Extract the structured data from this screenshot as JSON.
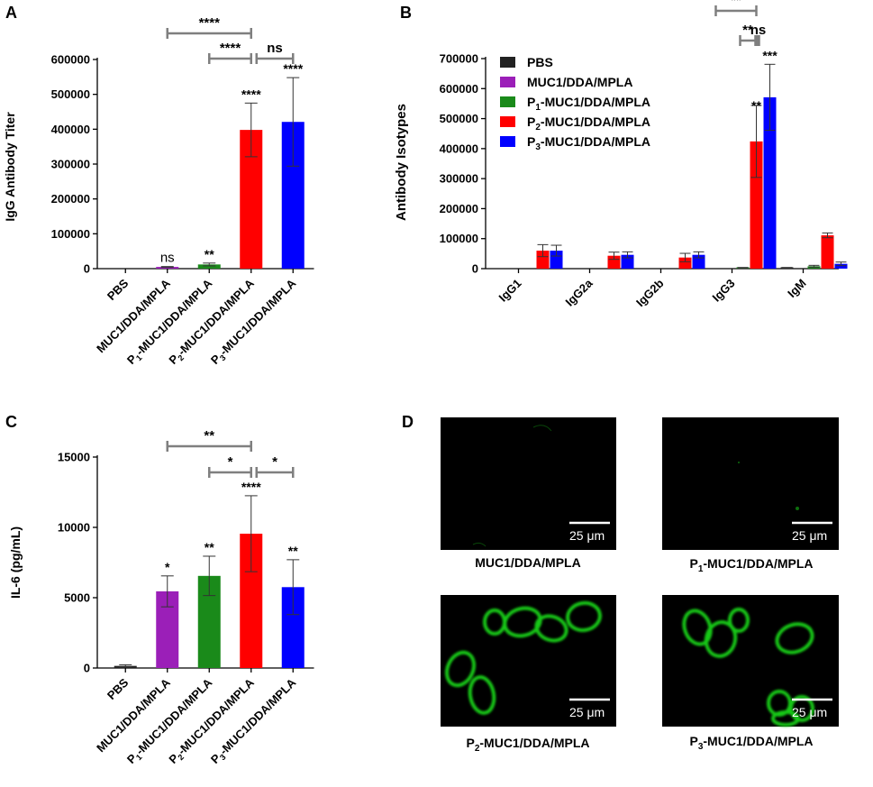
{
  "panels": {
    "A": {
      "letter": "A"
    },
    "B": {
      "letter": "B"
    },
    "C": {
      "letter": "C"
    },
    "D": {
      "letter": "D",
      "images": [
        {
          "caption": "MUC1/DDA/MPLA",
          "caption_prefix": "",
          "caption_sub": "",
          "scale_label": "25 μm"
        },
        {
          "caption": "-MUC1/DDA/MPLA",
          "caption_prefix": "P",
          "caption_sub": "1",
          "scale_label": "25 μm"
        },
        {
          "caption": "-MUC1/DDA/MPLA",
          "caption_prefix": "P",
          "caption_sub": "2",
          "scale_label": "25 μm"
        },
        {
          "caption": "-MUC1/DDA/MPLA",
          "caption_prefix": "P",
          "caption_sub": "3",
          "scale_label": "25 μm"
        }
      ],
      "fluorescence_color": "#19c819"
    }
  },
  "chart_data": [
    {
      "panel": "A",
      "type": "bar",
      "ylabel": "IgG Antibody Titer",
      "ylim": [
        0,
        600000
      ],
      "yticks": [
        "0",
        "100000",
        "200000",
        "300000",
        "400000",
        "500000",
        "600000"
      ],
      "ytick_values": [
        0,
        100000,
        200000,
        300000,
        400000,
        500000,
        600000
      ],
      "categories": [
        "PBS",
        "MUC1/DDA/MPLA",
        "P1-MUC1/DDA/MPLA",
        "P2-MUC1/DDA/MPLA",
        "P3-MUC1/DDA/MPLA"
      ],
      "values": [
        0,
        5000,
        12000,
        398000,
        421000
      ],
      "errors": [
        0,
        1000,
        4000,
        77000,
        127000
      ],
      "colors": [
        "#222222",
        "#9b1fb8",
        "#1a8a1a",
        "#ff0000",
        "#0000ff"
      ],
      "bar_annotations": [
        "",
        "ns",
        "**",
        "****",
        "****"
      ],
      "comparisons": [
        {
          "from": 1,
          "to": 3,
          "label": "****"
        },
        {
          "from": 2,
          "to": 3,
          "label": "****"
        },
        {
          "from": 3,
          "to": 4,
          "label": "ns"
        }
      ]
    },
    {
      "panel": "B",
      "type": "bar",
      "ylabel": "Antibody Isotypes",
      "ylim": [
        0,
        700000
      ],
      "yticks": [
        "0",
        "100000",
        "200000",
        "300000",
        "400000",
        "500000",
        "600000",
        "700000"
      ],
      "ytick_values": [
        0,
        100000,
        200000,
        300000,
        400000,
        500000,
        600000,
        700000
      ],
      "categories": [
        "IgG1",
        "IgG2a",
        "IgG2b",
        "IgG3",
        "IgM"
      ],
      "series": [
        {
          "name": "PBS",
          "legend_prefix": "PBS",
          "legend_sub": "",
          "legend_rest": "",
          "color": "#222222",
          "values": [
            0,
            0,
            0,
            0,
            3000
          ],
          "errors": [
            0,
            0,
            0,
            0,
            1000
          ]
        },
        {
          "name": "MUC1/DDA/MPLA",
          "legend_prefix": "MUC1/DDA/MPLA",
          "legend_sub": "",
          "legend_rest": "",
          "color": "#9b1fb8",
          "values": [
            0,
            0,
            0,
            0,
            0
          ],
          "errors": [
            0,
            0,
            0,
            0,
            0
          ]
        },
        {
          "name": "P1-MUC1/DDA/MPLA",
          "legend_prefix": "P",
          "legend_sub": "1",
          "legend_rest": "-MUC1/DDA/MPLA",
          "color": "#1a8a1a",
          "values": [
            0,
            0,
            0,
            3000,
            8000
          ],
          "errors": [
            0,
            0,
            0,
            1000,
            3000
          ]
        },
        {
          "name": "P2-MUC1/DDA/MPLA",
          "legend_prefix": "P",
          "legend_sub": "2",
          "legend_rest": "-MUC1/DDA/MPLA",
          "color": "#ff0000",
          "values": [
            60000,
            43000,
            37000,
            424000,
            111000
          ],
          "errors": [
            20000,
            12000,
            14000,
            120000,
            8000
          ]
        },
        {
          "name": "P3-MUC1/DDA/MPLA",
          "legend_prefix": "P",
          "legend_sub": "3",
          "legend_rest": "-MUC1/DDA/MPLA",
          "color": "#0000ff",
          "values": [
            60000,
            46000,
            46000,
            571000,
            16000
          ],
          "errors": [
            18000,
            10000,
            10000,
            110000,
            6000
          ]
        }
      ],
      "bar_annotations": [
        {
          "category": 3,
          "series": 3,
          "label": "**"
        },
        {
          "category": 3,
          "series": 4,
          "label": "***"
        }
      ],
      "comparisons": [
        {
          "label": "**"
        },
        {
          "label": "**"
        },
        {
          "label": "ns"
        }
      ]
    },
    {
      "panel": "C",
      "type": "bar",
      "ylabel": "IL-6 (pg/mL)",
      "ylim": [
        0,
        15000
      ],
      "yticks": [
        "0",
        "5000",
        "10000",
        "15000"
      ],
      "ytick_values": [
        0,
        5000,
        10000,
        15000
      ],
      "categories": [
        "PBS",
        "MUC1/DDA/MPLA",
        "P1-MUC1/DDA/MPLA",
        "P2-MUC1/DDA/MPLA",
        "P3-MUC1/DDA/MPLA"
      ],
      "values": [
        150,
        5450,
        6550,
        9550,
        5750
      ],
      "errors": [
        80,
        1100,
        1400,
        2700,
        1950
      ],
      "colors": [
        "#222222",
        "#9b1fb8",
        "#1a8a1a",
        "#ff0000",
        "#0000ff"
      ],
      "bar_annotations": [
        "",
        "*",
        "**",
        "****",
        "**"
      ],
      "comparisons": [
        {
          "from": 1,
          "to": 3,
          "label": "**"
        },
        {
          "from": 2,
          "to": 3,
          "label": "*"
        },
        {
          "from": 3,
          "to": 4,
          "label": "*"
        }
      ]
    }
  ]
}
